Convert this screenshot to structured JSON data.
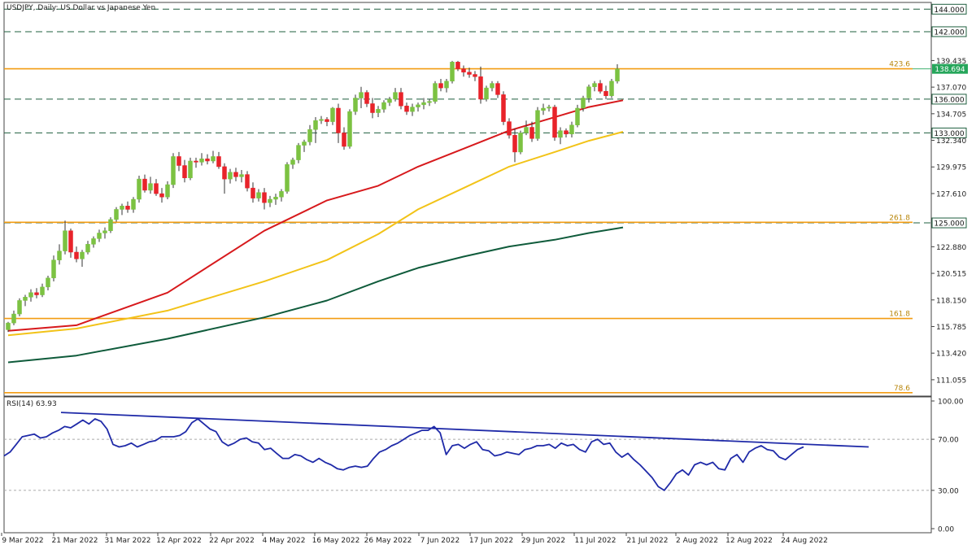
{
  "chart_title": "USDJPY, Daily:  US Dollar vs Japanese Yen",
  "rsi_label": "RSI(14) 63.93",
  "colors": {
    "bull": "#7cc242",
    "bear": "#e8232a",
    "ma_red": "#d7191c",
    "ma_yellow": "#f2c318",
    "ma_green": "#0f5b3b",
    "fib_orange": "#f39c12",
    "rsi_line": "#1f2aa8",
    "current_price_bg": "#26a65b"
  },
  "chart_data": [
    {
      "type": "candlestick",
      "title": "USDJPY, Daily:  US Dollar vs Japanese Yen",
      "ylim": [
        109.6,
        144.6
      ],
      "y_ticks": [
        "144.000",
        "142.000",
        "139.435",
        "137.070",
        "136.000",
        "134.705",
        "133.000",
        "132.340",
        "129.975",
        "127.610",
        "125.000",
        "122.880",
        "120.515",
        "118.150",
        "115.785",
        "113.420",
        "111.055"
      ],
      "x_tick_labels": [
        "9 Mar 2022",
        "21 Mar 2022",
        "31 Mar 2022",
        "12 Apr 2022",
        "22 Apr 2022",
        "4 May 2022",
        "16 May 2022",
        "26 May 2022",
        "7 Jun 2022",
        "17 Jun 2022",
        "29 Jun 2022",
        "11 Jul 2022",
        "21 Jul 2022",
        "2 Aug 2022",
        "12 Aug 2022",
        "24 Aug 2022"
      ],
      "horizontal_levels": [
        {
          "label": "144.000",
          "value": 144.0,
          "style": "dashed"
        },
        {
          "label": "142.000",
          "value": 142.0,
          "style": "dashed"
        },
        {
          "label": "136.000",
          "value": 136.0,
          "style": "dashed"
        },
        {
          "label": "133.000",
          "value": 133.0,
          "style": "dashed"
        },
        {
          "label": "125.000",
          "value": 125.0,
          "style": "dashed"
        }
      ],
      "fib_levels": [
        {
          "label": "423.6",
          "value": 138.7
        },
        {
          "label": "261.8",
          "value": 125.05
        },
        {
          "label": "161.8",
          "value": 116.5
        },
        {
          "label": "78.6",
          "value": 109.9
        }
      ],
      "current_price": {
        "label": "138.694",
        "value": 138.694
      },
      "candles": [
        [
          115.5,
          116.2,
          115.3,
          116.1
        ],
        [
          116.1,
          117.2,
          115.9,
          116.9
        ],
        [
          116.9,
          118.3,
          116.7,
          118.1
        ],
        [
          118.1,
          118.6,
          117.6,
          118.4
        ],
        [
          118.4,
          119.1,
          118.0,
          118.8
        ],
        [
          118.8,
          119.2,
          118.3,
          118.6
        ],
        [
          118.6,
          119.6,
          118.4,
          119.3
        ],
        [
          119.3,
          120.3,
          119.0,
          120.1
        ],
        [
          120.1,
          122.1,
          119.8,
          121.7
        ],
        [
          121.7,
          123.1,
          121.3,
          122.5
        ],
        [
          122.5,
          125.2,
          122.2,
          124.3
        ],
        [
          124.3,
          124.5,
          121.9,
          122.4
        ],
        [
          122.4,
          122.9,
          121.5,
          121.8
        ],
        [
          121.8,
          122.6,
          121.1,
          122.4
        ],
        [
          122.4,
          123.4,
          122.2,
          123.1
        ],
        [
          123.1,
          123.8,
          122.8,
          123.6
        ],
        [
          123.6,
          124.4,
          123.3,
          124.1
        ],
        [
          124.1,
          124.6,
          123.6,
          124.3
        ],
        [
          124.3,
          125.5,
          124.1,
          125.3
        ],
        [
          125.3,
          126.4,
          125.1,
          126.2
        ],
        [
          126.2,
          126.7,
          125.7,
          126.5
        ],
        [
          126.5,
          126.9,
          125.9,
          126.2
        ],
        [
          126.2,
          127.3,
          125.9,
          127.1
        ],
        [
          127.1,
          129.2,
          126.8,
          128.9
        ],
        [
          128.9,
          129.3,
          127.7,
          127.9
        ],
        [
          127.9,
          129.1,
          127.6,
          128.5
        ],
        [
          128.5,
          128.9,
          127.4,
          127.6
        ],
        [
          127.6,
          128.1,
          126.8,
          127.3
        ],
        [
          127.3,
          128.7,
          127.1,
          128.4
        ],
        [
          128.4,
          131.2,
          128.1,
          130.9
        ],
        [
          130.9,
          131.3,
          129.6,
          130.1
        ],
        [
          130.1,
          130.6,
          128.6,
          129.0
        ],
        [
          129.0,
          130.8,
          128.8,
          130.5
        ],
        [
          130.5,
          130.8,
          129.9,
          130.4
        ],
        [
          130.4,
          131.2,
          130.1,
          130.7
        ],
        [
          130.7,
          131.1,
          130.2,
          130.5
        ],
        [
          130.5,
          131.4,
          130.3,
          130.9
        ],
        [
          130.9,
          131.3,
          129.8,
          130.0
        ],
        [
          130.0,
          130.3,
          127.6,
          128.9
        ],
        [
          128.9,
          129.8,
          128.5,
          129.5
        ],
        [
          129.5,
          129.9,
          128.7,
          129.1
        ],
        [
          129.1,
          129.7,
          128.6,
          129.3
        ],
        [
          129.3,
          129.6,
          127.8,
          128.1
        ],
        [
          128.1,
          128.6,
          126.8,
          127.2
        ],
        [
          127.2,
          128.0,
          126.9,
          127.7
        ],
        [
          127.7,
          128.1,
          126.2,
          126.8
        ],
        [
          126.8,
          127.4,
          126.4,
          127.1
        ],
        [
          127.1,
          127.6,
          126.6,
          127.3
        ],
        [
          127.3,
          128.0,
          126.9,
          127.8
        ],
        [
          127.8,
          130.4,
          127.6,
          130.2
        ],
        [
          130.2,
          130.8,
          129.8,
          130.6
        ],
        [
          130.6,
          132.1,
          130.3,
          131.9
        ],
        [
          131.9,
          132.4,
          131.3,
          132.2
        ],
        [
          132.2,
          133.7,
          131.9,
          133.3
        ],
        [
          133.3,
          134.4,
          132.1,
          134.1
        ],
        [
          134.1,
          134.5,
          133.8,
          134.2
        ],
        [
          134.2,
          134.4,
          133.6,
          134.0
        ],
        [
          134.0,
          135.3,
          133.7,
          135.2
        ],
        [
          135.2,
          135.6,
          132.1,
          133.0
        ],
        [
          133.0,
          133.5,
          131.5,
          131.8
        ],
        [
          131.8,
          135.1,
          131.6,
          134.9
        ],
        [
          134.9,
          136.4,
          134.6,
          136.1
        ],
        [
          136.1,
          137.1,
          135.2,
          136.6
        ],
        [
          136.6,
          136.8,
          135.3,
          135.6
        ],
        [
          135.6,
          136.1,
          134.3,
          134.8
        ],
        [
          134.8,
          135.4,
          134.4,
          135.1
        ],
        [
          135.1,
          135.9,
          134.8,
          135.7
        ],
        [
          135.7,
          136.2,
          135.4,
          136.0
        ],
        [
          136.0,
          137.0,
          135.8,
          136.6
        ],
        [
          136.6,
          137.0,
          135.1,
          135.4
        ],
        [
          135.4,
          135.7,
          134.6,
          134.9
        ],
        [
          134.9,
          135.6,
          134.5,
          135.3
        ],
        [
          135.3,
          135.7,
          134.9,
          135.5
        ],
        [
          135.5,
          136.1,
          135.1,
          135.7
        ],
        [
          135.7,
          136.0,
          135.4,
          135.8
        ],
        [
          135.8,
          137.6,
          135.6,
          137.4
        ],
        [
          137.4,
          137.8,
          136.7,
          137.0
        ],
        [
          137.0,
          137.8,
          136.6,
          137.6
        ],
        [
          137.6,
          139.4,
          137.4,
          139.3
        ],
        [
          139.3,
          139.4,
          138.5,
          138.7
        ],
        [
          138.7,
          139.0,
          138.0,
          138.4
        ],
        [
          138.4,
          138.8,
          137.9,
          138.2
        ],
        [
          138.2,
          138.5,
          137.6,
          138.0
        ],
        [
          138.0,
          138.9,
          135.6,
          136.0
        ],
        [
          136.0,
          137.2,
          135.8,
          137.0
        ],
        [
          137.0,
          137.6,
          136.7,
          137.4
        ],
        [
          137.4,
          137.6,
          136.1,
          136.4
        ],
        [
          136.4,
          136.7,
          133.7,
          134.0
        ],
        [
          134.0,
          134.3,
          132.5,
          132.8
        ],
        [
          132.8,
          133.4,
          130.4,
          131.3
        ],
        [
          131.3,
          133.2,
          131.1,
          133.0
        ],
        [
          133.0,
          134.1,
          132.8,
          133.5
        ],
        [
          133.5,
          134.0,
          132.2,
          132.5
        ],
        [
          132.5,
          135.3,
          132.3,
          135.0
        ],
        [
          135.0,
          135.6,
          134.6,
          135.2
        ],
        [
          135.2,
          135.5,
          134.9,
          135.3
        ],
        [
          135.3,
          135.5,
          132.3,
          132.6
        ],
        [
          132.6,
          133.5,
          132.0,
          133.2
        ],
        [
          133.2,
          133.4,
          132.6,
          132.9
        ],
        [
          132.9,
          134.0,
          132.6,
          133.7
        ],
        [
          133.7,
          135.5,
          133.5,
          135.2
        ],
        [
          135.2,
          136.3,
          134.9,
          136.1
        ],
        [
          136.1,
          137.3,
          135.7,
          137.1
        ],
        [
          137.1,
          137.6,
          136.7,
          137.4
        ],
        [
          137.4,
          137.7,
          136.5,
          136.7
        ],
        [
          136.7,
          137.2,
          136.0,
          136.3
        ],
        [
          136.3,
          137.8,
          136.1,
          137.6
        ],
        [
          137.6,
          139.1,
          137.4,
          138.694
        ]
      ],
      "ma_red": [
        [
          115.4,
          0
        ],
        [
          115.9,
          12
        ],
        [
          118.8,
          28
        ],
        [
          124.3,
          45
        ],
        [
          127.0,
          56
        ],
        [
          128.3,
          65
        ],
        [
          130.0,
          72
        ],
        [
          131.6,
          80
        ],
        [
          133.2,
          88
        ],
        [
          134.4,
          96
        ],
        [
          135.3,
          102
        ],
        [
          135.9,
          108
        ]
      ],
      "ma_yellow": [
        [
          115.0,
          0
        ],
        [
          115.6,
          12
        ],
        [
          117.2,
          28
        ],
        [
          119.8,
          45
        ],
        [
          121.7,
          56
        ],
        [
          124.0,
          65
        ],
        [
          126.2,
          72
        ],
        [
          128.1,
          80
        ],
        [
          130.0,
          88
        ],
        [
          131.3,
          96
        ],
        [
          132.3,
          102
        ],
        [
          133.1,
          108
        ]
      ],
      "ma_green": [
        [
          112.6,
          0
        ],
        [
          113.2,
          12
        ],
        [
          114.7,
          28
        ],
        [
          116.6,
          45
        ],
        [
          118.1,
          56
        ],
        [
          119.8,
          65
        ],
        [
          121.0,
          72
        ],
        [
          122.0,
          80
        ],
        [
          122.9,
          88
        ],
        [
          123.5,
          96
        ],
        [
          124.1,
          102
        ],
        [
          124.6,
          108
        ]
      ]
    },
    {
      "type": "line",
      "title": "RSI(14) 63.93",
      "ylim": [
        0,
        100
      ],
      "y_ticks": [
        "100.00",
        "70.00",
        "30.00",
        "0.00"
      ],
      "levels": [
        70,
        30
      ],
      "values": [
        57,
        60,
        66,
        72,
        73,
        74,
        71,
        72,
        75,
        77,
        80,
        79,
        82,
        85,
        82,
        86,
        84,
        78,
        66,
        64,
        65,
        67,
        64,
        66,
        68,
        69,
        72,
        72,
        72,
        73,
        76,
        83,
        86,
        82,
        78,
        76,
        68,
        65,
        67,
        70,
        71,
        68,
        67,
        62,
        63,
        59,
        55,
        55,
        58,
        57,
        54,
        52,
        55,
        52,
        50,
        47,
        46,
        48,
        49,
        48,
        49,
        55,
        60,
        62,
        65,
        67,
        70,
        73,
        75,
        77,
        77,
        80,
        75,
        58,
        65,
        66,
        63,
        66,
        68,
        62,
        61,
        57,
        58,
        60,
        59,
        58,
        62,
        63,
        65,
        65,
        66,
        63,
        67,
        65,
        66,
        62,
        60,
        68,
        70,
        66,
        67,
        60,
        56,
        59,
        54,
        50,
        45,
        40,
        33,
        30,
        36,
        43,
        46,
        42,
        50,
        52,
        50,
        52,
        47,
        46,
        55,
        58,
        52,
        60,
        63,
        65,
        62,
        61,
        56,
        54,
        58,
        62,
        64
      ]
    }
  ]
}
